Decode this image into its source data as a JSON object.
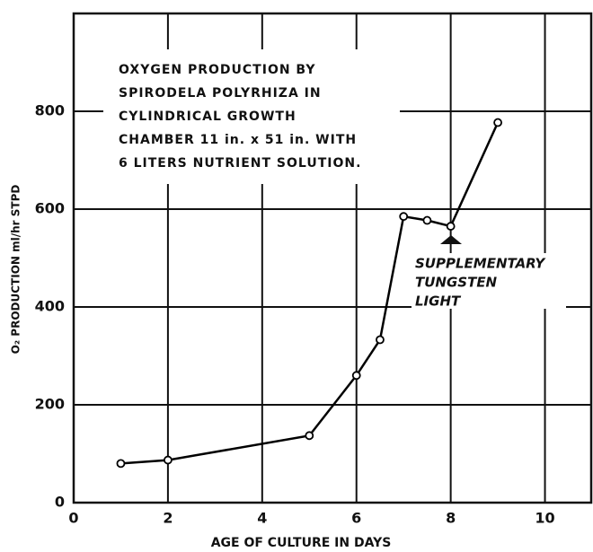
{
  "chart_data": {
    "type": "line",
    "title": [
      "OXYGEN PRODUCTION BY",
      "SPIRODELA POLYRHIZA IN",
      "CYLINDRICAL GROWTH",
      "CHAMBER  11 in. x 51 in. WITH",
      "6 LITERS NUTRIENT SOLUTION."
    ],
    "annotation": [
      "SUPPLEMENTARY",
      "TUNGSTEN",
      "LIGHT"
    ],
    "x_label": "AGE OF CULTURE IN DAYS",
    "y_label": "O₂ PRODUCTION ml/hr STPD",
    "x": [
      1,
      2,
      5,
      6,
      6.5,
      7,
      7.5,
      8,
      9
    ],
    "series": [
      {
        "color": "#000000",
        "values": [
          80,
          87,
          137,
          260,
          333,
          585,
          577,
          565,
          777
        ]
      }
    ],
    "xlim": [
      0,
      11
    ],
    "xticks": [
      0,
      2,
      4,
      6,
      8,
      10
    ],
    "ylim": [
      0,
      1000
    ],
    "yticks": [
      0,
      200,
      400,
      600,
      800
    ],
    "grid": true
  }
}
